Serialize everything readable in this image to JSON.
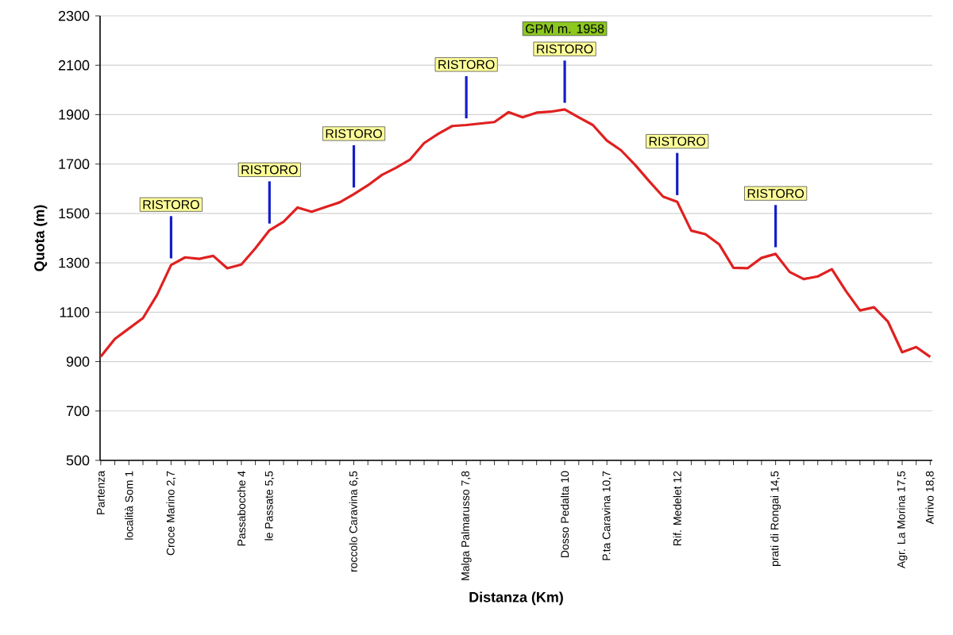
{
  "chart_data": {
    "type": "line",
    "xlabel": "Distanza (Km)",
    "ylabel": "Quota (m)",
    "categories": [
      "Partenza",
      null,
      "località Som 1",
      null,
      null,
      "Croce Marino 2,7",
      null,
      null,
      null,
      null,
      "Passabocche 4",
      null,
      "le Passate 5,5",
      null,
      null,
      null,
      null,
      null,
      "roccolo Caravina 6,5",
      null,
      null,
      null,
      null,
      null,
      null,
      null,
      "Malga Palmarusso 7,8",
      null,
      null,
      null,
      null,
      null,
      null,
      "Dosso Pedalta 10",
      null,
      null,
      "P.ta Caravina 10,7",
      null,
      null,
      null,
      null,
      "Rif. Medelet 12",
      null,
      null,
      null,
      null,
      null,
      null,
      "prati di Rongai 14,5",
      null,
      null,
      null,
      null,
      null,
      null,
      null,
      null,
      "Agr. La Morina 17,5",
      null,
      "Arrivo 18,8"
    ],
    "values": [
      920,
      992,
      1034,
      1076,
      1170,
      1291,
      1322,
      1316,
      1328,
      1278,
      1293,
      1359,
      1432,
      1466,
      1524,
      1507,
      1526,
      1545,
      1578,
      1614,
      1656,
      1685,
      1718,
      1785,
      1822,
      1854,
      1858,
      1864,
      1870,
      1910,
      1889,
      1908,
      1912,
      1921,
      1889,
      1858,
      1795,
      1756,
      1697,
      1631,
      1568,
      1547,
      1430,
      1416,
      1374,
      1280,
      1278,
      1320,
      1336,
      1263,
      1234,
      1245,
      1274,
      1186,
      1107,
      1120,
      1061,
      938,
      959,
      919
    ],
    "color": "#e02020",
    "ylim": [
      500,
      2300
    ],
    "yticks": [
      500,
      700,
      900,
      1100,
      1300,
      1500,
      1700,
      1900,
      2100,
      2300
    ],
    "grid": "y",
    "annotations": [
      {
        "text": "RISTORO",
        "x": "Croce Marino 2,7",
        "y": 1291
      },
      {
        "text": "RISTORO",
        "x": "le Passate 5,5",
        "y": 1432
      },
      {
        "text": "RISTORO",
        "x": "roccolo Caravina 6,5",
        "y": 1578
      },
      {
        "text": "RISTORO",
        "x": "Malga Palmarusso 7,8",
        "y": 1858
      },
      {
        "text": "RISTORO",
        "x": "Dosso Pedalta 10",
        "y": 1921
      },
      "GPM m. 1958",
      {
        "text": "RISTORO",
        "x": "Rif. Medelet 12",
        "y": 1547
      },
      {
        "text": "RISTORO",
        "x": "prati di Rongai 14,5",
        "y": 1336
      }
    ]
  }
}
